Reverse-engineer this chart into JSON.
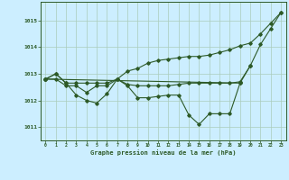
{
  "xlabel": "Graphe pression niveau de la mer (hPa)",
  "background_color": "#cceeff",
  "grid_color": "#aaccbb",
  "line_color": "#2d5a27",
  "x": [
    0,
    1,
    2,
    3,
    4,
    5,
    6,
    7,
    8,
    9,
    10,
    11,
    12,
    13,
    14,
    15,
    16,
    17,
    18,
    19,
    20,
    21,
    22,
    23
  ],
  "line1": [
    1012.8,
    1013.0,
    1012.65,
    1012.65,
    1012.65,
    1012.65,
    1012.65,
    1012.8,
    1013.1,
    1013.2,
    1013.4,
    1013.5,
    1013.55,
    1013.6,
    1013.65,
    1013.65,
    1013.7,
    1013.8,
    1013.9,
    1014.05,
    1014.15,
    1014.5,
    1014.9,
    1015.3
  ],
  "line2": [
    1012.8,
    1012.8,
    1012.55,
    1012.55,
    1012.3,
    1012.55,
    1012.55,
    1012.8,
    1012.6,
    1012.55,
    1012.55,
    1012.55,
    1012.55,
    1012.6,
    1012.65,
    1012.65,
    1012.65,
    1012.65,
    1012.65,
    1012.7,
    1013.3,
    null,
    null,
    null
  ],
  "line3": [
    1012.8,
    1013.0,
    1012.65,
    1012.2,
    1012.0,
    1011.9,
    1012.25,
    1012.8,
    1012.55,
    1012.1,
    1012.1,
    1012.15,
    1012.2,
    1012.2,
    1011.45,
    1011.1,
    1011.5,
    1011.5,
    1011.5,
    1012.65,
    null,
    null,
    null,
    null
  ],
  "line4": [
    1012.8,
    null,
    null,
    null,
    null,
    null,
    null,
    null,
    null,
    null,
    null,
    null,
    null,
    null,
    null,
    null,
    null,
    null,
    null,
    1012.65,
    1013.3,
    1014.1,
    1014.7,
    1015.3
  ],
  "ylim": [
    1010.5,
    1015.7
  ],
  "yticks": [
    1011,
    1012,
    1013,
    1014,
    1015
  ]
}
